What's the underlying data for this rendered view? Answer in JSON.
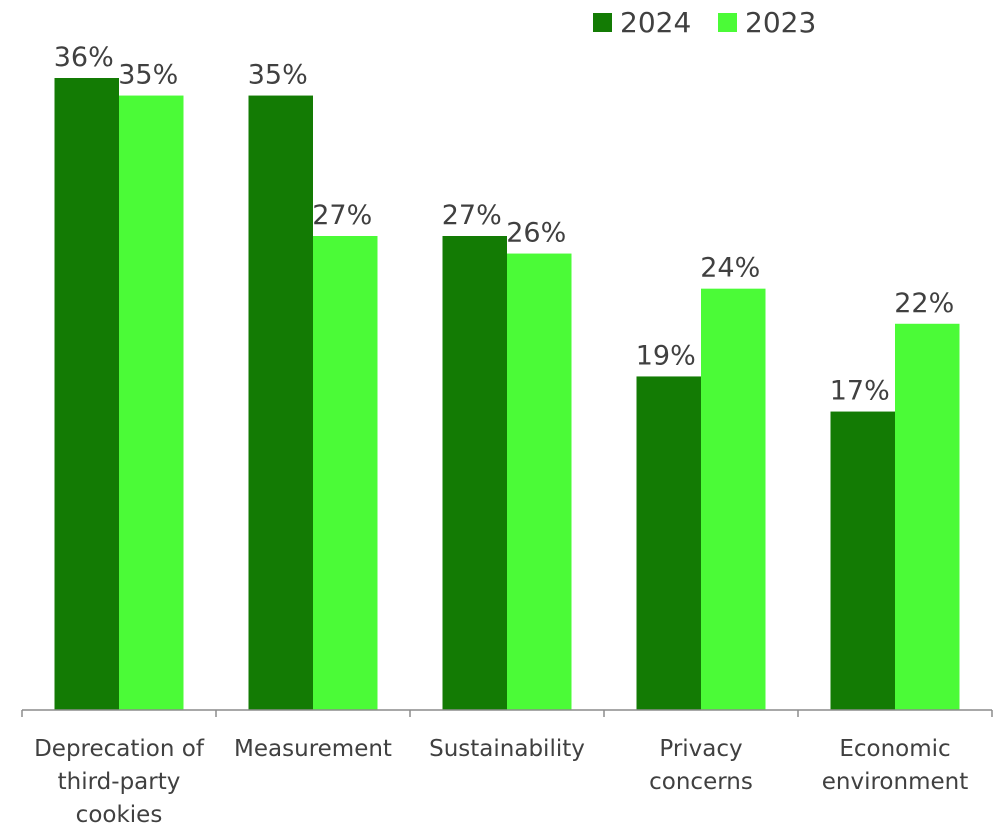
{
  "chart_data": {
    "type": "bar",
    "title": "",
    "xlabel": "",
    "ylabel": "",
    "categories": [
      [
        "Deprecation of",
        "third-party",
        "cookies"
      ],
      [
        "Measurement"
      ],
      [
        "Sustainability"
      ],
      [
        "Privacy",
        "concerns"
      ],
      [
        "Economic",
        "environment"
      ]
    ],
    "series": [
      {
        "name": "2024",
        "color": "#137B04",
        "values": [
          36,
          35,
          27,
          19,
          17
        ],
        "labels": [
          "36%",
          "35%",
          "27%",
          "19%",
          "17%"
        ]
      },
      {
        "name": "2023",
        "color": "#4BFB37",
        "values": [
          35,
          27,
          26,
          24,
          22
        ],
        "labels": [
          "35%",
          "27%",
          "26%",
          "24%",
          "22%"
        ]
      }
    ],
    "ylim": [
      0,
      36
    ],
    "legend": "top-right",
    "grid": false,
    "axis_color": "#8c8c8c",
    "text_color": "#404040"
  }
}
